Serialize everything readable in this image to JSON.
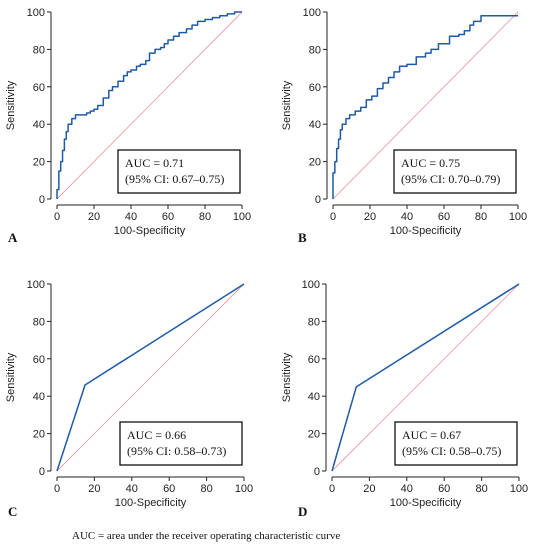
{
  "caption": "AUC = area under the receiver operating characteristic curve",
  "colors": {
    "roc": "#1f5aa6",
    "diagonal": "#e8a0a8",
    "axis": "#222222",
    "box": "#111111"
  },
  "chart_data": [
    {
      "panel": "A",
      "type": "line",
      "xlabel": "100-Specificity",
      "ylabel": "Sensitivity",
      "xlim": [
        0,
        100
      ],
      "ylim": [
        0,
        100
      ],
      "xticks": [
        0,
        20,
        40,
        60,
        80,
        100
      ],
      "yticks": [
        0,
        20,
        40,
        60,
        80,
        100
      ],
      "legend_position": "bottom-right",
      "annotation": [
        "AUC = 0.71",
        "(95% CI: 0.67–0.75)"
      ],
      "series": [
        {
          "x": [
            0,
            0,
            1,
            1,
            2,
            2,
            3,
            3,
            4,
            4,
            5,
            5,
            6,
            6,
            8,
            8,
            10,
            10,
            13,
            13,
            16,
            16,
            18,
            18,
            20,
            20,
            22,
            22,
            25,
            25,
            28,
            28,
            30,
            30,
            33,
            33,
            36,
            36,
            38,
            38,
            40,
            40,
            43,
            43,
            45,
            45,
            48,
            48,
            50,
            50,
            53,
            53,
            56,
            56,
            58,
            58,
            60,
            60,
            63,
            63,
            66,
            66,
            70,
            70,
            73,
            73,
            76,
            76,
            80,
            80,
            84,
            84,
            88,
            88,
            92,
            92,
            96,
            96,
            100
          ],
          "y": [
            0,
            5,
            5,
            15,
            15,
            20,
            20,
            26,
            26,
            32,
            32,
            36,
            36,
            40,
            40,
            43,
            43,
            45,
            45,
            45,
            45,
            46,
            46,
            47,
            47,
            48,
            48,
            50,
            50,
            54,
            54,
            58,
            58,
            60,
            60,
            63,
            63,
            66,
            66,
            68,
            68,
            69,
            69,
            71,
            71,
            72,
            72,
            74,
            74,
            78,
            78,
            80,
            80,
            81,
            81,
            83,
            83,
            85,
            85,
            87,
            87,
            89,
            89,
            91,
            91,
            93,
            93,
            95,
            95,
            96,
            96,
            97,
            97,
            98,
            98,
            99,
            99,
            100,
            100
          ]
        }
      ]
    },
    {
      "panel": "B",
      "type": "line",
      "xlabel": "100-Specificity",
      "ylabel": "Sensitivity",
      "xlim": [
        0,
        100
      ],
      "ylim": [
        0,
        100
      ],
      "xticks": [
        0,
        20,
        40,
        60,
        80,
        100
      ],
      "yticks": [
        0,
        20,
        40,
        60,
        80,
        100
      ],
      "legend_position": "bottom-right",
      "annotation": [
        "AUC = 0.75",
        "(95% CI: 0.70–0.79)"
      ],
      "series": [
        {
          "x": [
            0,
            0,
            1,
            1,
            2,
            2,
            3,
            3,
            4,
            4,
            5,
            5,
            7,
            7,
            9,
            9,
            12,
            12,
            15,
            15,
            18,
            18,
            21,
            21,
            24,
            24,
            27,
            27,
            30,
            30,
            33,
            33,
            36,
            36,
            40,
            40,
            45,
            45,
            50,
            50,
            53,
            53,
            57,
            57,
            63,
            63,
            68,
            68,
            71,
            71,
            74,
            74,
            76,
            76,
            80,
            80,
            100
          ],
          "y": [
            0,
            14,
            14,
            20,
            20,
            27,
            27,
            32,
            32,
            37,
            37,
            40,
            40,
            43,
            43,
            45,
            45,
            47,
            47,
            49,
            49,
            53,
            53,
            55,
            55,
            59,
            59,
            62,
            62,
            65,
            65,
            68,
            68,
            71,
            71,
            72,
            72,
            76,
            76,
            78,
            78,
            80,
            80,
            83,
            83,
            87,
            87,
            88,
            88,
            90,
            90,
            93,
            93,
            95,
            95,
            98,
            98
          ]
        }
      ]
    },
    {
      "panel": "C",
      "type": "line",
      "xlabel": "100-Specificity",
      "ylabel": "Sensitivity",
      "xlim": [
        0,
        100
      ],
      "ylim": [
        0,
        100
      ],
      "xticks": [
        0,
        20,
        40,
        60,
        80,
        100
      ],
      "yticks": [
        0,
        20,
        40,
        60,
        80,
        100
      ],
      "legend_position": "bottom-right",
      "annotation": [
        "AUC = 0.66",
        "(95% CI: 0.58–0.73)"
      ],
      "series": [
        {
          "x": [
            0,
            15,
            100
          ],
          "y": [
            0,
            46,
            100
          ]
        }
      ]
    },
    {
      "panel": "D",
      "type": "line",
      "xlabel": "100-Specificity",
      "ylabel": "Sensitivity",
      "xlim": [
        0,
        100
      ],
      "ylim": [
        0,
        100
      ],
      "xticks": [
        0,
        20,
        40,
        60,
        80,
        100
      ],
      "yticks": [
        0,
        20,
        40,
        60,
        80,
        100
      ],
      "legend_position": "bottom-right",
      "annotation": [
        "AUC = 0.67",
        "(95% CI: 0.58–0.75)"
      ],
      "series": [
        {
          "x": [
            0,
            13,
            100
          ],
          "y": [
            0,
            45,
            100
          ]
        }
      ]
    }
  ]
}
